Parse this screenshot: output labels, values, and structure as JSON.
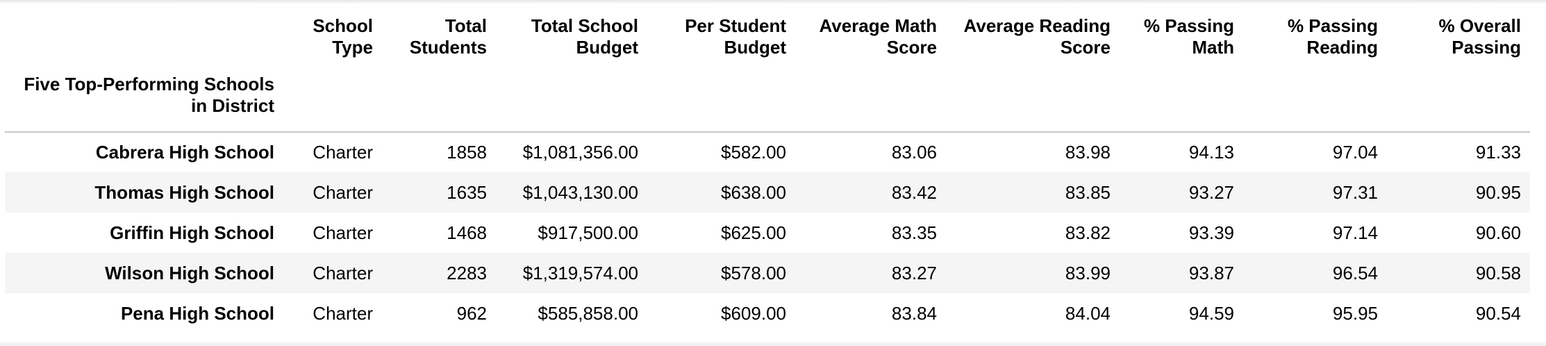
{
  "table": {
    "index_name": "Five Top-Performing Schools in District",
    "columns": [
      "School Type",
      "Total Students",
      "Total School Budget",
      "Per Student Budget",
      "Average Math Score",
      "Average Reading Score",
      "% Passing Math",
      "% Passing Reading",
      "% Overall Passing"
    ],
    "rows": [
      {
        "school": "Cabrera High School",
        "cells": [
          "Charter",
          "1858",
          "$1,081,356.00",
          "$582.00",
          "83.06",
          "83.98",
          "94.13",
          "97.04",
          "91.33"
        ]
      },
      {
        "school": "Thomas High School",
        "cells": [
          "Charter",
          "1635",
          "$1,043,130.00",
          "$638.00",
          "83.42",
          "83.85",
          "93.27",
          "97.31",
          "90.95"
        ]
      },
      {
        "school": "Griffin High School",
        "cells": [
          "Charter",
          "1468",
          "$917,500.00",
          "$625.00",
          "83.35",
          "83.82",
          "93.39",
          "97.14",
          "90.60"
        ]
      },
      {
        "school": "Wilson High School",
        "cells": [
          "Charter",
          "2283",
          "$1,319,574.00",
          "$578.00",
          "83.27",
          "83.99",
          "93.87",
          "96.54",
          "90.58"
        ]
      },
      {
        "school": "Pena High School",
        "cells": [
          "Charter",
          "962",
          "$585,858.00",
          "$609.00",
          "83.84",
          "84.04",
          "94.59",
          "95.95",
          "90.54"
        ]
      }
    ]
  },
  "colors": {
    "striped_row": "#f5f5f5",
    "header_rule": "#c8c8c8"
  }
}
